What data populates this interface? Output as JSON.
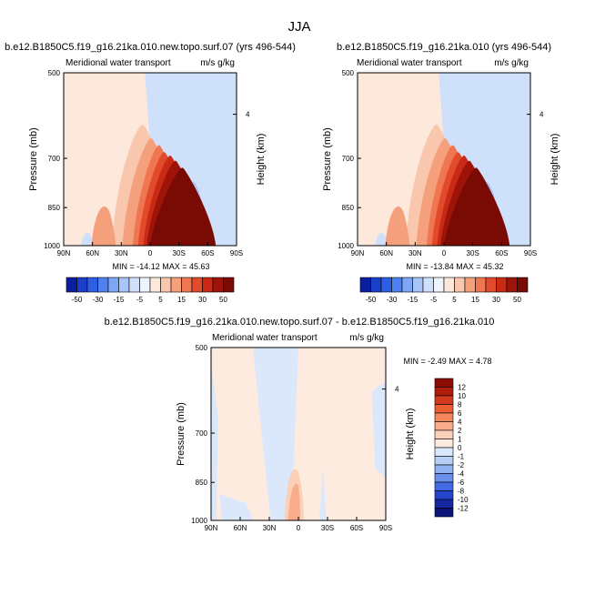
{
  "figure": {
    "title": "JJA"
  },
  "chart_data": [
    {
      "type": "heatmap",
      "title": "b.e12.B1850C5.f19_g16.21ka.010.new.topo.surf.07 (yrs 496-544)",
      "left_title": "Meridional water transport",
      "units": "m/s g/kg",
      "ylabel": "Pressure (mb)",
      "right_label": "Height (km)",
      "x_ticks": [
        "90N",
        "60N",
        "30N",
        "0",
        "30S",
        "60S",
        "90S"
      ],
      "y_ticks": [
        "500",
        "700",
        "850",
        "1000"
      ],
      "right_ticks": [
        "4"
      ],
      "stats": "MIN = -14.12  MAX = 45.63",
      "min": -14.12,
      "max": 45.63,
      "colorbar_levels": [
        "-50",
        "-30",
        "-15",
        "-5",
        "5",
        "15",
        "30",
        "50"
      ]
    },
    {
      "type": "heatmap",
      "title": "b.e12.B1850C5.f19_g16.21ka.010 (yrs 496-544)",
      "left_title": "Meridional water transport",
      "units": "m/s g/kg",
      "ylabel": "Pressure (mb)",
      "right_label": "Height (km)",
      "x_ticks": [
        "90N",
        "60N",
        "30N",
        "0",
        "30S",
        "60S",
        "90S"
      ],
      "y_ticks": [
        "500",
        "700",
        "850",
        "1000"
      ],
      "right_ticks": [
        "4"
      ],
      "stats": "MIN = -13.84  MAX = 45.32",
      "min": -13.84,
      "max": 45.32,
      "colorbar_levels": [
        "-50",
        "-30",
        "-15",
        "-5",
        "5",
        "15",
        "30",
        "50"
      ]
    },
    {
      "type": "heatmap",
      "title": "b.e12.B1850C5.f19_g16.21ka.010.new.topo.surf.07 - b.e12.B1850C5.f19_g16.21ka.010",
      "left_title": "Meridional water transport",
      "units": "m/s g/kg",
      "ylabel": "Pressure (mb)",
      "right_label": "Height (km)",
      "x_ticks": [
        "90N",
        "60N",
        "30N",
        "0",
        "30S",
        "60S",
        "90S"
      ],
      "y_ticks": [
        "500",
        "700",
        "850",
        "1000"
      ],
      "right_ticks": [
        "4"
      ],
      "stats": "MIN = -2.49  MAX = 4.78",
      "min": -2.49,
      "max": 4.78,
      "colorbar_levels": [
        "12",
        "10",
        "8",
        "6",
        "4",
        "2",
        "1",
        "0",
        "-1",
        "-2",
        "-4",
        "-6",
        "-8",
        "-10",
        "-12"
      ]
    }
  ],
  "colors": {
    "abs_scale": [
      "#0a1f9e",
      "#1a3fc9",
      "#2d5fe6",
      "#4f80f0",
      "#7fa6f5",
      "#a9c4f7",
      "#cfe0fa",
      "#eef4fd",
      "#fde8dc",
      "#f9c7ad",
      "#f5a07d",
      "#ef7651",
      "#e24a2c",
      "#c82a16",
      "#9e1409",
      "#7a0b04"
    ],
    "diff_scale": [
      "#8b0d04",
      "#b01d0c",
      "#d23a1b",
      "#ec5d32",
      "#f5875e",
      "#f9ad8a",
      "#fbd0b8",
      "#fdebe0",
      "#dbe8fb",
      "#b7cff6",
      "#91b2f1",
      "#6a8fec",
      "#4369e3",
      "#2645cd",
      "#15289f",
      "#0a1577"
    ]
  }
}
